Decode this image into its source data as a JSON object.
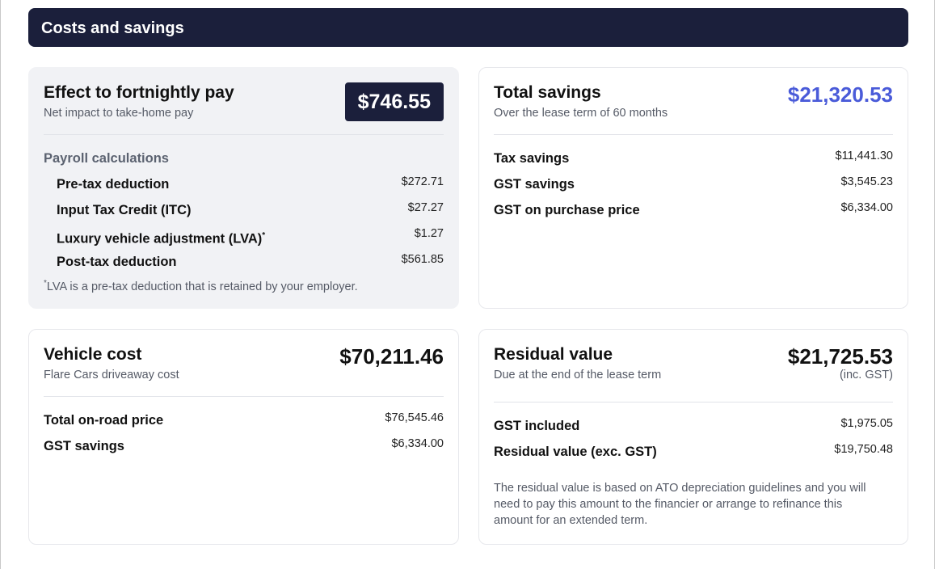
{
  "header": {
    "title": "Costs and savings"
  },
  "fortnightly": {
    "title": "Effect to fortnightly pay",
    "subtitle": "Net impact to take-home pay",
    "amount": "$746.55",
    "section_label": "Payroll calculations",
    "rows": [
      {
        "label": "Pre-tax deduction",
        "value": "$272.71"
      },
      {
        "label": "Input Tax Credit (ITC)",
        "value": "$27.27"
      },
      {
        "label": "Luxury vehicle adjustment (LVA)",
        "sup": "*",
        "value": "$1.27"
      },
      {
        "label": "Post-tax deduction",
        "value": "$561.85"
      }
    ],
    "footnote_marker": "*",
    "footnote": "LVA is a pre-tax deduction that is retained by your employer."
  },
  "savings": {
    "title": "Total savings",
    "subtitle": "Over the lease term of 60 months",
    "amount": "$21,320.53",
    "accent_color": "#4a5bd9",
    "rows": [
      {
        "label": "Tax savings",
        "value": "$11,441.30"
      },
      {
        "label": "GST savings",
        "value": "$3,545.23"
      },
      {
        "label": "GST on purchase price",
        "value": "$6,334.00"
      }
    ]
  },
  "vehicle": {
    "title": "Vehicle cost",
    "subtitle": "Flare Cars driveaway cost",
    "amount": "$70,211.46",
    "rows": [
      {
        "label": "Total on-road price",
        "value": "$76,545.46"
      },
      {
        "label": "GST savings",
        "value": "$6,334.00"
      }
    ]
  },
  "residual": {
    "title": "Residual value",
    "subtitle": "Due at the end of the lease term",
    "amount": "$21,725.53",
    "amount_note": "(inc. GST)",
    "rows": [
      {
        "label": "GST included",
        "value": "$1,975.05"
      },
      {
        "label": "Residual value (exc. GST)",
        "value": "$19,750.48"
      }
    ],
    "note": "The residual value is based on ATO depreciation guidelines and you will need to pay this amount to the financier or arrange to refinance this amount for an extended term."
  },
  "colors": {
    "header_bg": "#1b1f3b",
    "card_grey": "#f1f2f5"
  }
}
